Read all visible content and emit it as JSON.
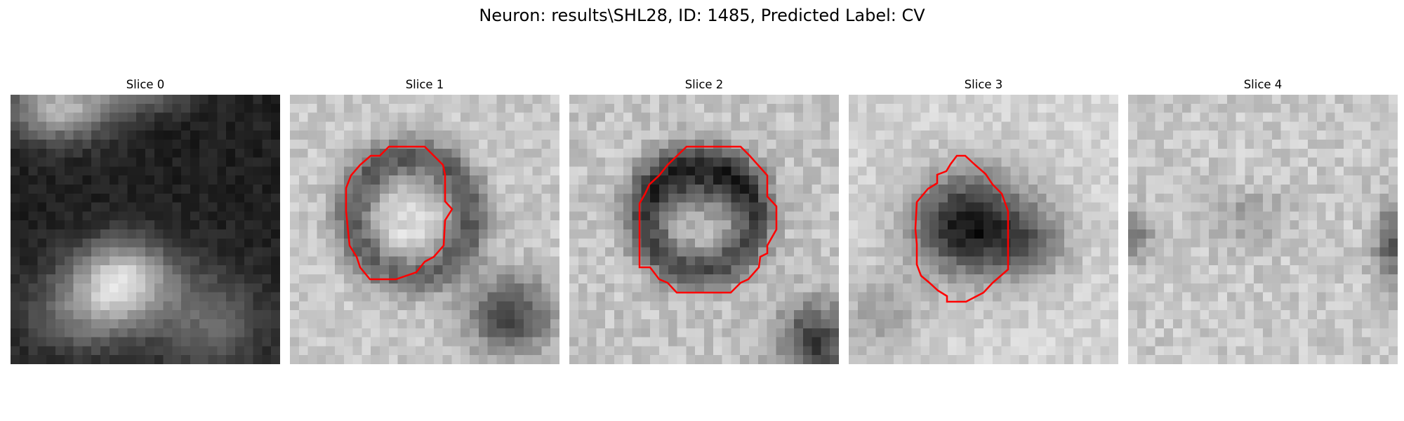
{
  "figure": {
    "title": "Neuron: results\\SHL28, ID: 1485, Predicted Label: CV"
  },
  "panels": [
    {
      "title": "Slice 0",
      "has_contour": false,
      "contour_color": "#ff0000"
    },
    {
      "title": "Slice 1",
      "has_contour": true,
      "contour_color": "#ff0000"
    },
    {
      "title": "Slice 2",
      "has_contour": true,
      "contour_color": "#ff0000"
    },
    {
      "title": "Slice 3",
      "has_contour": true,
      "contour_color": "#ff0000"
    },
    {
      "title": "Slice 4",
      "has_contour": false,
      "contour_color": "#ff0000"
    }
  ],
  "colormap": "gray"
}
